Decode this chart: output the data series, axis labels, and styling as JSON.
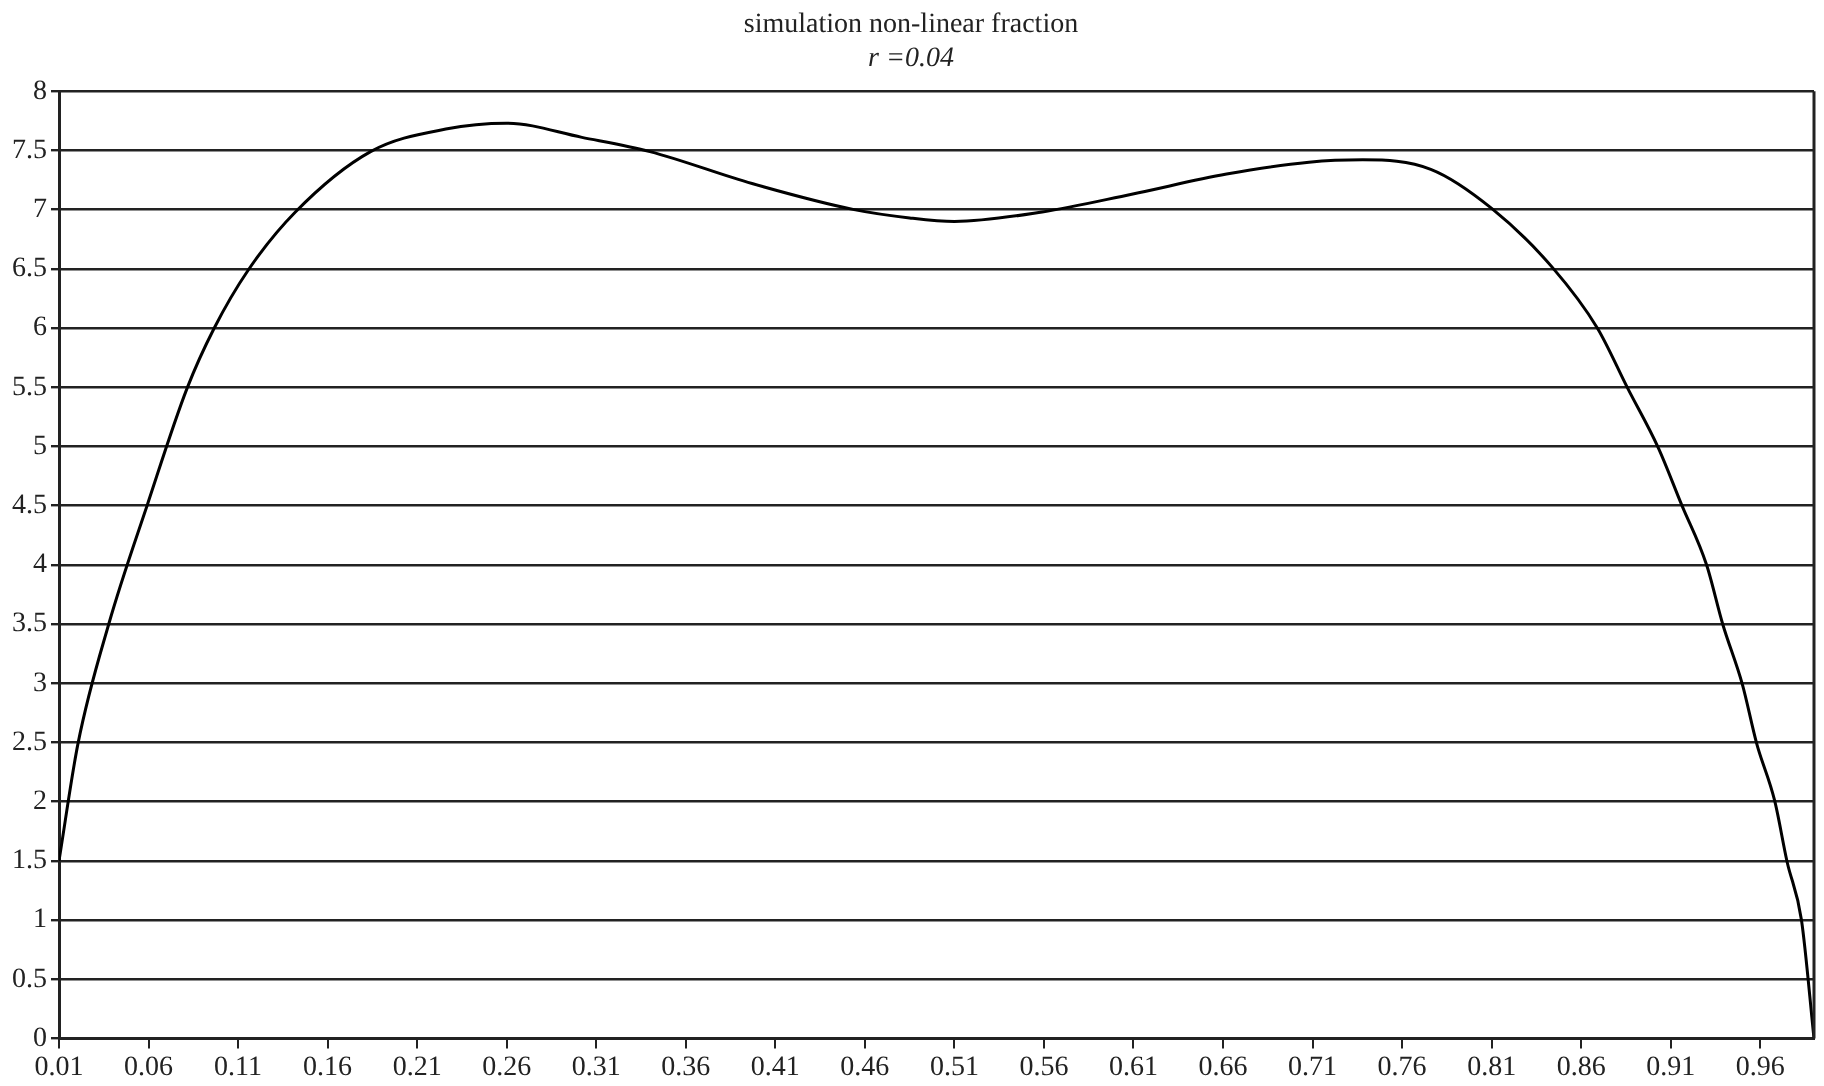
{
  "chart_data": {
    "type": "line",
    "title": "simulation non-linear fraction",
    "subtitle": "r =0.04",
    "x": [
      0.01,
      0.0206,
      0.0378,
      0.0594,
      0.0815,
      0.0967,
      0.1157,
      0.142,
      0.184,
      0.226,
      0.26,
      0.302,
      0.34,
      0.397,
      0.454,
      0.485,
      0.51,
      0.559,
      0.609,
      0.662,
      0.708,
      0.738,
      0.776,
      0.81,
      0.844,
      0.869,
      0.886,
      0.903,
      0.916,
      0.93,
      0.939,
      0.95,
      0.958,
      0.968,
      0.975,
      0.983,
      0.99
    ],
    "series": [
      {
        "color": "#000000",
        "values": [
          1.5,
          2.49,
          3.5,
          4.51,
          5.49,
          6.0,
          6.49,
          6.98,
          7.49,
          7.68,
          7.73,
          7.61,
          7.49,
          7.22,
          7.0,
          6.93,
          6.9,
          6.98,
          7.13,
          7.3,
          7.4,
          7.42,
          7.34,
          7.01,
          6.51,
          6.0,
          5.49,
          4.99,
          4.51,
          4.0,
          3.5,
          2.99,
          2.49,
          2.01,
          1.49,
          1.0,
          0
        ]
      }
    ],
    "xlim": [
      0.01,
      0.99
    ],
    "xticks": [
      0.01,
      0.06,
      0.11,
      0.16,
      0.21,
      0.26,
      0.31,
      0.36,
      0.41,
      0.46,
      0.51,
      0.56,
      0.61,
      0.66,
      0.71,
      0.76,
      0.81,
      0.86,
      0.91,
      0.96
    ],
    "ylim": [
      0,
      8
    ],
    "yticks": [
      0,
      0.5,
      1,
      1.5,
      2,
      2.5,
      3,
      3.5,
      4,
      4.5,
      5,
      5.5,
      6,
      6.5,
      7,
      7.5,
      8
    ],
    "grid": "y",
    "marker": "none",
    "line_style": "solid"
  }
}
